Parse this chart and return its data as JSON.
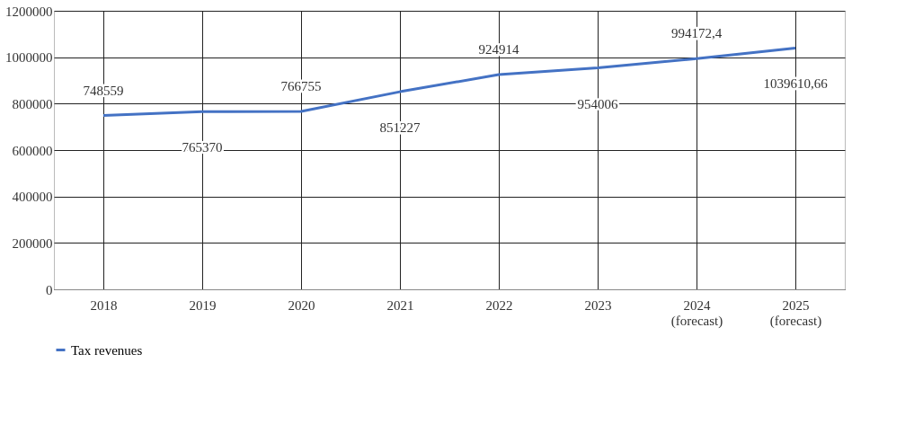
{
  "chart_data": {
    "type": "line",
    "categories": [
      "2018",
      "2019",
      "2020",
      "2021",
      "2022",
      "2023",
      "2024\n(forecast)",
      "2025\n(forecast)"
    ],
    "series": [
      {
        "name": "Tax revenues",
        "color": "#4472c4",
        "values": [
          748559,
          765370,
          766755,
          851227,
          924914,
          954006,
          994172.4,
          1039610.66
        ],
        "value_labels": [
          "748559",
          "765370",
          "766755",
          "851227",
          "924914",
          "954006",
          "994172,4",
          "1039610,66"
        ]
      }
    ],
    "ylim": [
      0,
      1200000
    ],
    "yticks": [
      0,
      200000,
      400000,
      600000,
      800000,
      1000000,
      1200000
    ],
    "grid": true,
    "legend": "bottom",
    "marker": "none",
    "line_style": "solid"
  }
}
